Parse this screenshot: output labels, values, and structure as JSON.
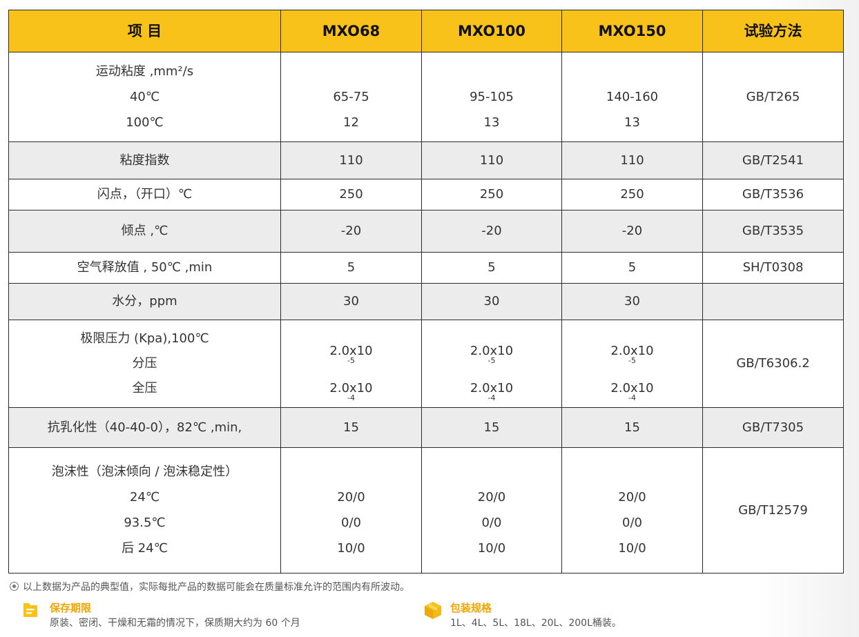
{
  "table": {
    "headers": [
      "项 目",
      "MXO68",
      "MXO100",
      "MXO150",
      "试验方法"
    ],
    "rows": [
      {
        "item": [
          "运动粘度 ,mm²/s",
          "40℃",
          "100℃"
        ],
        "mxo68": [
          "65-75",
          "12"
        ],
        "mxo100": [
          "95-105",
          "13"
        ],
        "mxo150": [
          "140-160",
          "13"
        ],
        "method": "GB/T265"
      },
      {
        "item": [
          "粘度指数"
        ],
        "mxo68": [
          "110"
        ],
        "mxo100": [
          "110"
        ],
        "mxo150": [
          "110"
        ],
        "method": "GB/T2541"
      },
      {
        "item": [
          "闪点，（开口）℃"
        ],
        "mxo68": [
          "250"
        ],
        "mxo100": [
          "250"
        ],
        "mxo150": [
          "250"
        ],
        "method": "GB/T3536"
      },
      {
        "item": [
          "倾点 ,℃"
        ],
        "mxo68": [
          "-20"
        ],
        "mxo100": [
          "-20"
        ],
        "mxo150": [
          "-20"
        ],
        "method": "GB/T3535"
      },
      {
        "item": [
          "空气释放值 , 50℃ ,min"
        ],
        "mxo68": [
          "5"
        ],
        "mxo100": [
          "5"
        ],
        "mxo150": [
          "5"
        ],
        "method": "SH/T0308"
      },
      {
        "item": [
          "水分，ppm"
        ],
        "mxo68": [
          "30"
        ],
        "mxo100": [
          "30"
        ],
        "mxo150": [
          "30"
        ],
        "method": ""
      },
      {
        "item": [
          "极限压力 (Kpa),100℃",
          "分压",
          "全压"
        ],
        "mxo68": [
          {
            "base": "2.0x10",
            "exp": "-5"
          },
          {
            "base": "2.0x10",
            "exp": "-4"
          }
        ],
        "mxo100": [
          {
            "base": "2.0x10",
            "exp": "-5"
          },
          {
            "base": "2.0x10",
            "exp": "-4"
          }
        ],
        "mxo150": [
          {
            "base": "2.0x10",
            "exp": "-5"
          },
          {
            "base": "2.0x10",
            "exp": "-4"
          }
        ],
        "method": "GB/T6306.2"
      },
      {
        "item": [
          "抗乳化性（40-40-0），82℃ ,min,"
        ],
        "mxo68": [
          "15"
        ],
        "mxo100": [
          "15"
        ],
        "mxo150": [
          "15"
        ],
        "method": "GB/T7305"
      },
      {
        "item": [
          "泡沫性（泡沫倾向 / 泡沫稳定性）",
          "24℃",
          "93.5℃",
          "后 24℃"
        ],
        "mxo68": [
          "20/0",
          "0/0",
          "10/0"
        ],
        "mxo100": [
          "20/0",
          "0/0",
          "10/0"
        ],
        "mxo150": [
          "20/0",
          "0/0",
          "10/0"
        ],
        "method": "GB/T12579"
      }
    ]
  },
  "footnote": "以上数据为产品的典型值，实际每批产品的数据可能会在质量标准允许的范围内有所波动。",
  "storage": {
    "title": "保存期限",
    "text": "原装、密闭、干燥和无霜的情况下，保质期大约为 60 个月",
    "icon": "folder-icon"
  },
  "package": {
    "title": "包装规格",
    "text": "1L、4L、5L、18L、20L、200L桶装。",
    "icon": "box-icon"
  },
  "colors": {
    "header_bg": "#f8c21b",
    "accent": "#f0a500",
    "shaded_row": "#ececec"
  }
}
